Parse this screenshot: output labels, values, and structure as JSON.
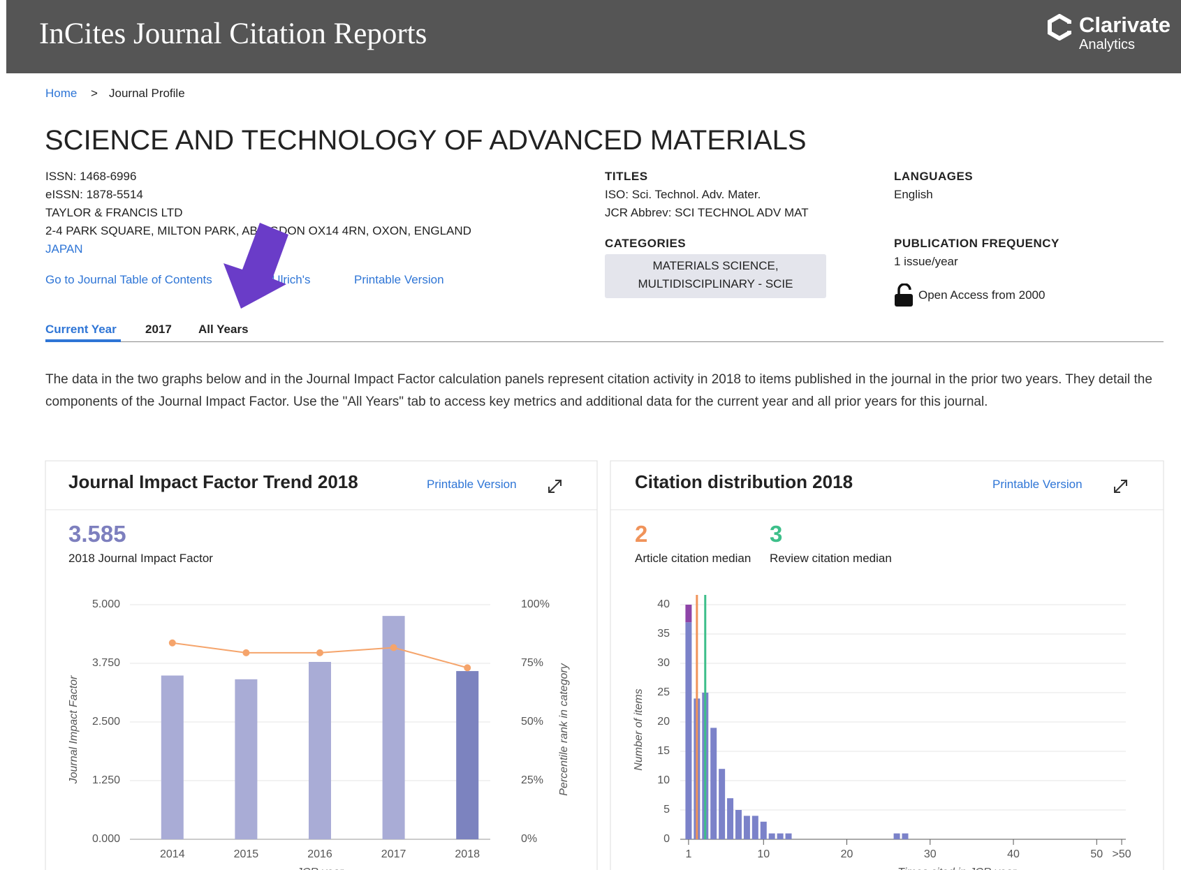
{
  "header": {
    "title": "InCites Journal Citation Reports",
    "brand": "Clarivate",
    "brand_sub": "Analytics"
  },
  "breadcrumb": {
    "items": [
      "Home",
      "Journal Profile"
    ],
    "separator": ">"
  },
  "journal": {
    "title": "SCIENCE AND TECHNOLOGY OF ADVANCED MATERIALS",
    "info": [
      "ISSN: 1468-6996",
      "eISSN: 1878-5514",
      "TAYLOR & FRANCIS LTD",
      "2-4 PARK SQUARE, MILTON PARK, ABINGDON OX14 4RN, OXON, ENGLAND",
      "JAPAN"
    ],
    "links": [
      "Go to Journal Table of Contents",
      "Go to Ulrich's",
      "Printable Version"
    ],
    "titles": {
      "heading": "TITLES",
      "lines": [
        "ISO: Sci. Technol. Adv. Mater.",
        "JCR Abbrev: SCI TECHNOL ADV MAT"
      ]
    },
    "categories": {
      "heading": "CATEGORIES",
      "value": "MATERIALS SCIENCE, MULTIDISCIPLINARY - SCIE"
    },
    "languages": {
      "heading": "LANGUAGES",
      "value": "English"
    },
    "frequency": {
      "heading": "PUBLICATION FREQUENCY",
      "value": "1 issue/year",
      "open_access": "Open Access from 2000"
    }
  },
  "tabs": [
    "Current Year",
    "2017",
    "All Years"
  ],
  "description": "The data in the two graphs below and in the Journal Impact Factor calculation panels represent citation activity in 2018 to items published in the journal in the prior two years. They detail the components of the Journal Impact Factor. Use the \"All Years\" tab to access key metrics and additional data for the current year and all prior years for this journal.",
  "chart_data": [
    {
      "type": "bar",
      "title": "Journal Impact Factor Trend 2018",
      "link": "Printable Version",
      "metrics": [
        {
          "value": 3.585,
          "label": "2018 Journal Impact Factor",
          "color": "#7d7fbe"
        }
      ],
      "categories": [
        "2014",
        "2015",
        "2016",
        "2017",
        "2018"
      ],
      "series": [
        {
          "colors": [
            "#a9acd6",
            "#a9acd6",
            "#a9acd6",
            "#a9acd6",
            "#7c83bf"
          ],
          "values": [
            3.49,
            3.41,
            3.78,
            4.76,
            3.585
          ]
        },
        {
          "type": "line",
          "axis": "y2",
          "color": "#f5a46b",
          "values": [
            83.7,
            79.5,
            79.5,
            81.7,
            73.1
          ]
        }
      ],
      "y_label": "Journal Impact Factor",
      "y2_label": "Percentile rank in category",
      "x_label": "JCR year",
      "ylim": [
        0,
        5
      ],
      "yticks": [
        {
          "value": 0,
          "label": "0.000"
        },
        {
          "value": 1.25,
          "label": "1.250"
        },
        {
          "value": 2.5,
          "label": "2.500"
        },
        {
          "value": 3.75,
          "label": "3.750"
        },
        {
          "value": 5,
          "label": "5.000"
        }
      ],
      "y2lim": [
        0,
        100
      ],
      "y2ticks": [
        {
          "value": 0,
          "label": "0%"
        },
        {
          "value": 25,
          "label": "25%"
        },
        {
          "value": 50,
          "label": "50%"
        },
        {
          "value": 75,
          "label": "75%"
        },
        {
          "value": 100,
          "label": "100%"
        }
      ],
      "grid": true
    },
    {
      "type": "stacked_bar",
      "title": "Citation distribution 2018",
      "link": "Printable Version",
      "metrics": [
        {
          "value": 2,
          "label": "Article citation median",
          "color": "#f0935a"
        },
        {
          "value": 3,
          "label": "Review citation median",
          "color": "#3dbf8a"
        }
      ],
      "x": [
        1,
        2,
        3,
        4,
        5,
        6,
        7,
        8,
        9,
        10,
        11,
        12,
        13,
        26,
        27
      ],
      "series": [
        {
          "color": "#7b82c9",
          "values": [
            37,
            24,
            25,
            19,
            12,
            7,
            5,
            4,
            4,
            3,
            1,
            1,
            1,
            1,
            1
          ]
        },
        {
          "color": "#8e44a8",
          "values": [
            3,
            0,
            0,
            0,
            0,
            0,
            0,
            0,
            0,
            0,
            0,
            0,
            0,
            0,
            0
          ]
        }
      ],
      "y_label": "Number of items",
      "x_label": "Times cited in JCR year",
      "xlim": [
        0,
        54
      ],
      "xticks": [
        1,
        10,
        20,
        30,
        40,
        50,
        {
          "value": 53,
          "label": ">50"
        }
      ],
      "ylim": [
        0,
        40
      ],
      "yticks": [
        0,
        5,
        10,
        15,
        20,
        25,
        30,
        35,
        40
      ],
      "grid": true
    }
  ]
}
